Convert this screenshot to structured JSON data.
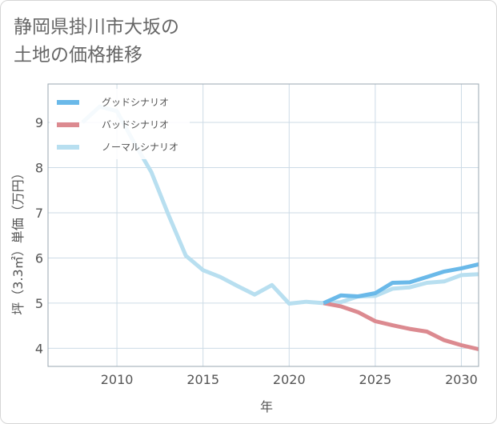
{
  "title_lines": [
    "静岡県掛川市大坂の",
    "土地の価格推移"
  ],
  "colors": {
    "good": "#6ab9e9",
    "bad": "#dc8a90",
    "normal": "#b8dff0",
    "grid": "#cddbe6",
    "frame": "#9aa7b0"
  },
  "chart_data": {
    "type": "line",
    "title": "静岡県掛川市大坂の土地の価格推移",
    "xlabel": "年",
    "ylabel": "坪（3.3㎡）単価（万円）",
    "xlim": [
      2006,
      2031
    ],
    "ylim": [
      3.6,
      9.85
    ],
    "xticks": [
      2010,
      2015,
      2020,
      2025,
      2030
    ],
    "yticks": [
      4,
      5,
      6,
      7,
      8,
      9
    ],
    "grid": true,
    "legend_position": "top-left",
    "series": [
      {
        "name": "グッドシナリオ",
        "key": "good",
        "x": [
          2022,
          2023,
          2024,
          2025,
          2026,
          2027,
          2028,
          2029,
          2030,
          2031
        ],
        "y": [
          5.0,
          5.17,
          5.15,
          5.22,
          5.45,
          5.46,
          5.58,
          5.7,
          5.77,
          5.86
        ]
      },
      {
        "name": "バッドシナリオ",
        "key": "bad",
        "x": [
          2022,
          2023,
          2024,
          2025,
          2026,
          2027,
          2028,
          2029,
          2030,
          2031
        ],
        "y": [
          5.0,
          4.93,
          4.8,
          4.6,
          4.51,
          4.43,
          4.37,
          4.18,
          4.07,
          3.98
        ]
      },
      {
        "name": "ノーマルシナリオ",
        "key": "normal",
        "x": [
          2008,
          2009,
          2010,
          2011,
          2012,
          2013,
          2014,
          2015,
          2016,
          2017,
          2018,
          2019,
          2020,
          2021,
          2022,
          2023,
          2024,
          2025,
          2026,
          2027,
          2028,
          2029,
          2030,
          2031
        ],
        "y": [
          9.0,
          9.35,
          9.25,
          8.55,
          7.9,
          6.95,
          6.05,
          5.73,
          5.58,
          5.38,
          5.19,
          5.4,
          4.99,
          5.03,
          5.0,
          5.02,
          5.15,
          5.16,
          5.32,
          5.35,
          5.45,
          5.48,
          5.62,
          5.64
        ]
      }
    ]
  }
}
